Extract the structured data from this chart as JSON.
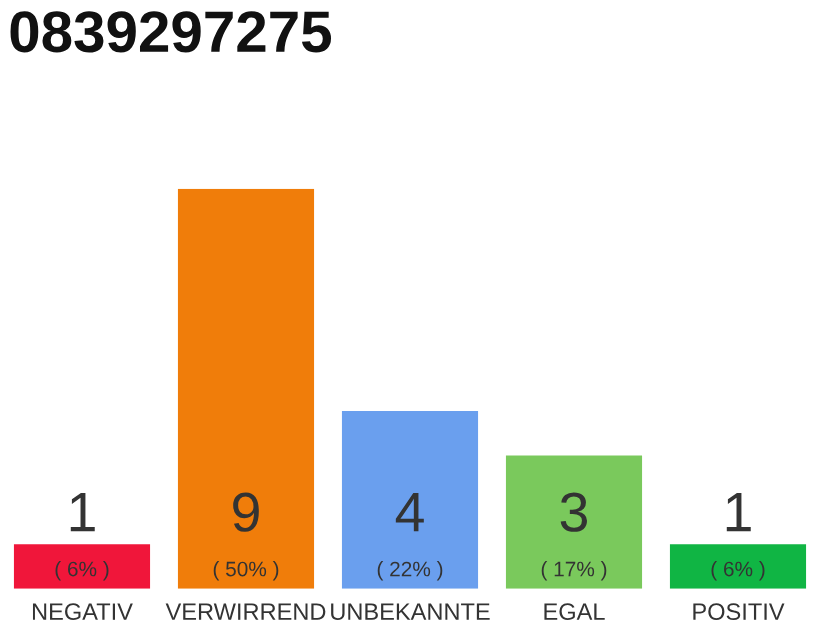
{
  "chart_data": {
    "type": "bar",
    "title": "0839297275",
    "categories": [
      "NEGATIV",
      "VERWIRREND",
      "UNBEKANNTE",
      "EGAL",
      "POSITIV"
    ],
    "values": [
      1,
      9,
      4,
      3,
      1
    ],
    "colors": [
      "#f0163a",
      "#f07d0a",
      "#6a9fee",
      "#7ac95c",
      "#10b544"
    ],
    "value_labels": [
      "1",
      "9",
      "4",
      "3",
      "1"
    ],
    "annotations": [
      "( 6% )",
      "( 50% )",
      "( 22% )",
      "( 17% )",
      "( 6% )"
    ],
    "grid": false,
    "legend": false
  }
}
